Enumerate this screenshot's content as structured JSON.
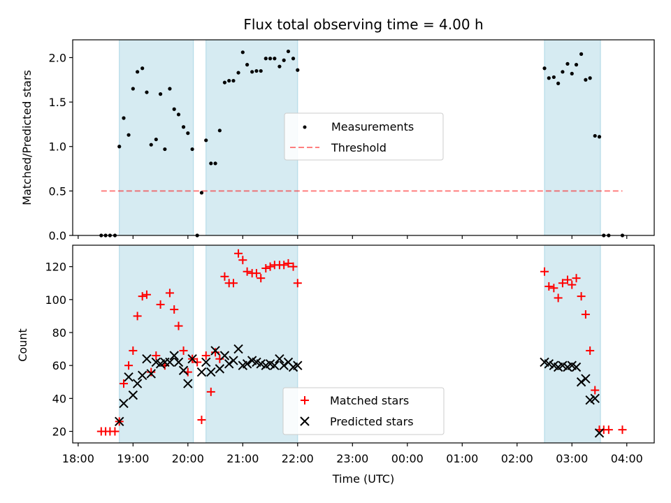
{
  "colors": {
    "band": "#add8e6",
    "measurement": "#000000",
    "threshold": "#ff0000",
    "matched": "#ff0000",
    "predicted": "#000000"
  },
  "chart_data": [
    {
      "type": "scatter",
      "title": "Flux total observing time = 4.00 h",
      "xlabel": "",
      "ylabel": "Matched/Predicted stars",
      "x_unit": "hours since 18:00 UTC",
      "xlim": [
        17.9,
        28.5
      ],
      "ylim": [
        0,
        2.2
      ],
      "yticks": [
        0.0,
        0.5,
        1.0,
        1.5,
        2.0
      ],
      "ytick_labels": [
        "0.0",
        "0.5",
        "1.0",
        "1.5",
        "2.0"
      ],
      "shaded_intervals": [
        [
          18.75,
          20.1
        ],
        [
          20.33,
          22.0
        ],
        [
          26.5,
          27.52
        ]
      ],
      "legend": {
        "position": "center",
        "entries": [
          "Measurements",
          "Threshold"
        ]
      },
      "threshold": {
        "name": "Threshold",
        "value": 0.5,
        "x_range": [
          18.42,
          27.92
        ],
        "style": "dashed"
      },
      "series": [
        {
          "name": "Measurements",
          "marker": "dot",
          "x": [
            18.42,
            18.5,
            18.58,
            18.67,
            18.75,
            18.83,
            18.92,
            19.0,
            19.08,
            19.17,
            19.25,
            19.33,
            19.42,
            19.5,
            19.58,
            19.67,
            19.75,
            19.83,
            19.92,
            20.0,
            20.08,
            20.17,
            20.25,
            20.33,
            20.42,
            20.5,
            20.58,
            20.67,
            20.75,
            20.83,
            20.92,
            21.0,
            21.08,
            21.17,
            21.25,
            21.33,
            21.42,
            21.5,
            21.58,
            21.67,
            21.75,
            21.83,
            21.92,
            22.0,
            26.5,
            26.58,
            26.67,
            26.75,
            26.83,
            26.92,
            27.0,
            27.08,
            27.17,
            27.25,
            27.33,
            27.42,
            27.5,
            27.58,
            27.67,
            27.92
          ],
          "y": [
            0.0,
            0.0,
            0.0,
            0.0,
            1.0,
            1.32,
            1.13,
            1.65,
            1.84,
            1.88,
            1.61,
            1.02,
            1.08,
            1.59,
            0.97,
            1.65,
            1.42,
            1.36,
            1.22,
            1.15,
            0.97,
            0.0,
            0.48,
            1.07,
            0.81,
            0.81,
            1.18,
            1.72,
            1.74,
            1.74,
            1.83,
            2.06,
            1.92,
            1.84,
            1.85,
            1.85,
            1.99,
            1.99,
            1.99,
            1.9,
            1.97,
            2.07,
            1.99,
            1.86,
            1.88,
            1.77,
            1.78,
            1.71,
            1.84,
            1.93,
            1.82,
            1.92,
            2.04,
            1.75,
            1.77,
            1.12,
            1.11,
            0.0,
            0.0,
            0.0
          ]
        }
      ]
    },
    {
      "type": "scatter",
      "title": "",
      "xlabel": "Time (UTC)",
      "ylabel": "Count",
      "x_unit": "hours since 18:00 UTC",
      "xlim": [
        17.9,
        28.5
      ],
      "ylim": [
        13,
        133
      ],
      "yticks": [
        20,
        40,
        60,
        80,
        100,
        120
      ],
      "ytick_labels": [
        "20",
        "40",
        "60",
        "80",
        "100",
        "120"
      ],
      "xticks": [
        18,
        19,
        20,
        21,
        22,
        23,
        24,
        25,
        26,
        27,
        28
      ],
      "xtick_labels": [
        "18:00",
        "19:00",
        "20:00",
        "21:00",
        "22:00",
        "23:00",
        "00:00",
        "01:00",
        "02:00",
        "03:00",
        "04:00"
      ],
      "shaded_intervals": [
        [
          18.75,
          20.1
        ],
        [
          20.33,
          22.0
        ],
        [
          26.5,
          27.52
        ]
      ],
      "legend": {
        "position": "lower center",
        "entries": [
          "Matched stars",
          "Predicted stars"
        ]
      },
      "series": [
        {
          "name": "Matched stars",
          "marker": "plus",
          "x": [
            18.42,
            18.5,
            18.58,
            18.67,
            18.75,
            18.83,
            18.92,
            19.0,
            19.08,
            19.17,
            19.25,
            19.33,
            19.42,
            19.5,
            19.58,
            19.67,
            19.75,
            19.83,
            19.92,
            20.0,
            20.08,
            20.17,
            20.25,
            20.33,
            20.42,
            20.5,
            20.58,
            20.67,
            20.75,
            20.83,
            20.92,
            21.0,
            21.08,
            21.17,
            21.25,
            21.33,
            21.42,
            21.5,
            21.58,
            21.67,
            21.75,
            21.83,
            21.92,
            22.0,
            26.5,
            26.58,
            26.67,
            26.75,
            26.83,
            26.92,
            27.0,
            27.08,
            27.17,
            27.25,
            27.33,
            27.42,
            27.5,
            27.58,
            27.67,
            27.92
          ],
          "y": [
            20,
            20,
            20,
            20,
            26,
            49,
            60,
            69,
            90,
            102,
            103,
            56,
            66,
            97,
            60,
            104,
            94,
            84,
            69,
            56,
            64,
            62,
            27,
            66,
            44,
            68,
            64,
            114,
            110,
            110,
            128,
            124,
            117,
            116,
            116,
            113,
            119,
            120,
            121,
            121,
            121,
            122,
            120,
            110,
            117,
            108,
            107,
            101,
            110,
            112,
            109,
            113,
            102,
            91,
            69,
            45,
            21,
            21,
            21,
            21
          ]
        },
        {
          "name": "Predicted stars",
          "marker": "x",
          "x": [
            18.75,
            18.83,
            18.92,
            19.0,
            19.08,
            19.17,
            19.25,
            19.33,
            19.42,
            19.5,
            19.58,
            19.67,
            19.75,
            19.83,
            19.92,
            20.0,
            20.08,
            20.25,
            20.33,
            20.42,
            20.5,
            20.58,
            20.67,
            20.75,
            20.83,
            20.92,
            21.0,
            21.08,
            21.17,
            21.25,
            21.33,
            21.42,
            21.5,
            21.58,
            21.67,
            21.75,
            21.83,
            21.92,
            22.0,
            26.5,
            26.58,
            26.67,
            26.75,
            26.83,
            26.92,
            27.0,
            27.08,
            27.17,
            27.25,
            27.33,
            27.42,
            27.5
          ],
          "y": [
            26,
            37,
            53,
            42,
            49,
            54,
            64,
            55,
            62,
            61,
            62,
            62,
            66,
            62,
            57,
            49,
            64,
            56,
            62,
            56,
            69,
            58,
            66,
            61,
            63,
            70,
            60,
            61,
            63,
            62,
            61,
            60,
            61,
            60,
            64,
            60,
            62,
            59,
            60,
            62,
            61,
            60,
            59,
            60,
            59,
            60,
            59,
            50,
            52,
            39,
            40,
            19
          ]
        }
      ]
    }
  ]
}
